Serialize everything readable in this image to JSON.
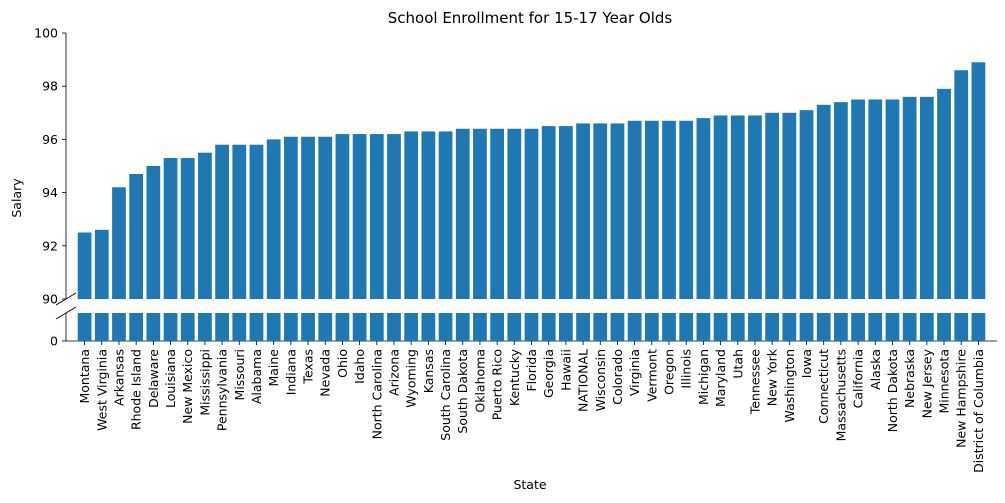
{
  "chart_data": {
    "type": "bar",
    "title": "School Enrollment for 15-17 Year Olds",
    "xlabel": "State",
    "ylabel": "Salary",
    "color": "#1f77b4",
    "axis_break": true,
    "lower_segment": {
      "ylim": [
        0,
        1
      ],
      "ticks": [
        {
          "value": 0,
          "label": "0"
        }
      ]
    },
    "upper_segment": {
      "ylim": [
        90,
        100
      ],
      "ticks": [
        {
          "value": 90,
          "label": "90"
        },
        {
          "value": 92,
          "label": "92"
        },
        {
          "value": 94,
          "label": "94"
        },
        {
          "value": 96,
          "label": "96"
        },
        {
          "value": 98,
          "label": "98"
        },
        {
          "value": 100,
          "label": "100"
        }
      ]
    },
    "grid": false,
    "categories": [
      "Montana",
      "West Virginia",
      "Arkansas",
      "Rhode Island",
      "Delaware",
      "Louisiana",
      "New Mexico",
      "Mississippi",
      "Pennsylvania",
      "Missouri",
      "Alabama",
      "Maine",
      "Indiana",
      "Texas",
      "Nevada",
      "Ohio",
      "Idaho",
      "North Carolina",
      "Arizona",
      "Wyoming",
      "Kansas",
      "South Carolina",
      "South Dakota",
      "Oklahoma",
      "Puerto Rico",
      "Kentucky",
      "Florida",
      "Georgia",
      "Hawaii",
      "NATIONAL",
      "Wisconsin",
      "Colorado",
      "Virginia",
      "Vermont",
      "Oregon",
      "Illinois",
      "Michigan",
      "Maryland",
      "Utah",
      "Tennessee",
      "New York",
      "Washington",
      "Iowa",
      "Connecticut",
      "Massachusetts",
      "California",
      "Alaska",
      "North Dakota",
      "Nebraska",
      "New Jersey",
      "Minnesota",
      "New Hampshire",
      "District of Columbia"
    ],
    "values": [
      92.5,
      92.6,
      94.2,
      94.7,
      95.0,
      95.3,
      95.3,
      95.5,
      95.8,
      95.8,
      95.8,
      96.0,
      96.1,
      96.1,
      96.1,
      96.2,
      96.2,
      96.2,
      96.2,
      96.3,
      96.3,
      96.3,
      96.4,
      96.4,
      96.4,
      96.4,
      96.4,
      96.5,
      96.5,
      96.6,
      96.6,
      96.6,
      96.7,
      96.7,
      96.7,
      96.7,
      96.8,
      96.9,
      96.9,
      96.9,
      97.0,
      97.0,
      97.1,
      97.3,
      97.4,
      97.5,
      97.5,
      97.5,
      97.6,
      97.6,
      97.9,
      98.6,
      98.9
    ]
  }
}
